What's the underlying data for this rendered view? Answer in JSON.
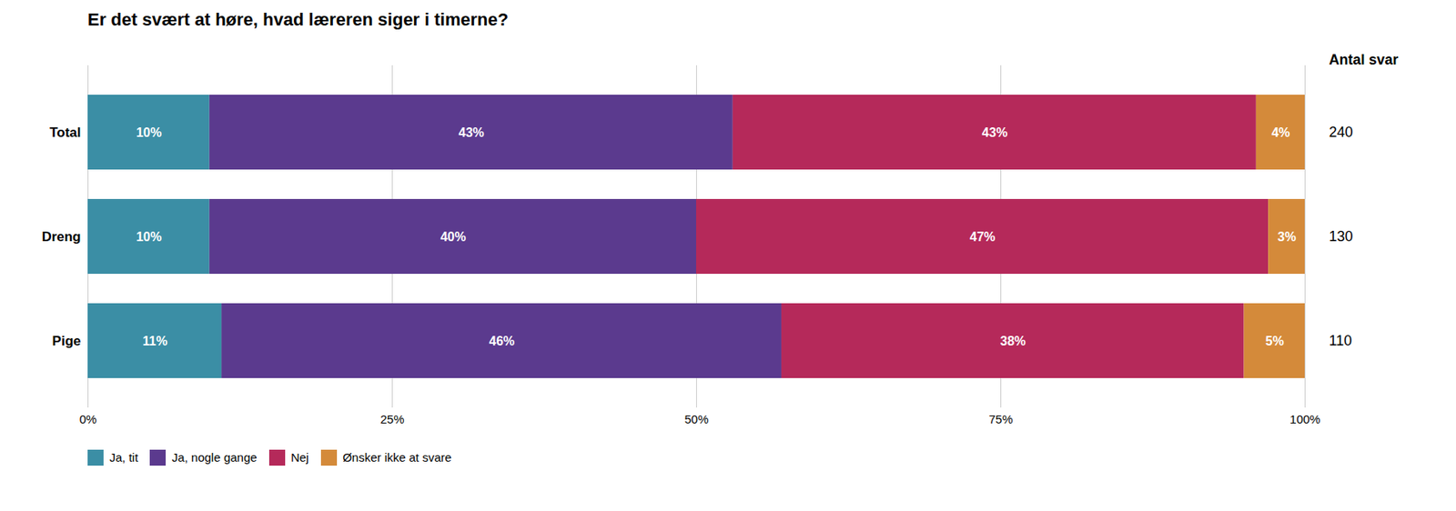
{
  "chart_data": {
    "type": "bar",
    "orientation": "horizontal",
    "stacked": true,
    "title": "Er det svært at høre, hvad læreren siger i timerne?",
    "categories": [
      "Total",
      "Dreng",
      "Pige"
    ],
    "series": [
      {
        "name": "Ja, tit",
        "color": "#3b8ea5",
        "values": [
          10,
          10,
          11
        ],
        "value_labels": [
          "10%",
          "10%",
          "11%"
        ]
      },
      {
        "name": "Ja, nogle gange",
        "color": "#5b3a8e",
        "values": [
          43,
          40,
          46
        ],
        "value_labels": [
          "43%",
          "40%",
          "46%"
        ]
      },
      {
        "name": "Nej",
        "color": "#b5295a",
        "values": [
          43,
          47,
          38
        ],
        "value_labels": [
          "43%",
          "47%",
          "38%"
        ]
      },
      {
        "name": "Ønsker ikke at svare",
        "color": "#d48a3a",
        "values": [
          4,
          3,
          5
        ],
        "value_labels": [
          "4%",
          "3%",
          "5%"
        ]
      }
    ],
    "counts_label": "Antal svar",
    "counts": [
      240,
      130,
      110
    ],
    "xlim": [
      0,
      100
    ],
    "xticks": [
      {
        "value": 0,
        "label": "0%"
      },
      {
        "value": 25,
        "label": "25%"
      },
      {
        "value": 50,
        "label": "50%"
      },
      {
        "value": 75,
        "label": "75%"
      },
      {
        "value": 100,
        "label": "100%"
      }
    ],
    "grid": true,
    "data_labels": true,
    "legend": "bottom"
  }
}
